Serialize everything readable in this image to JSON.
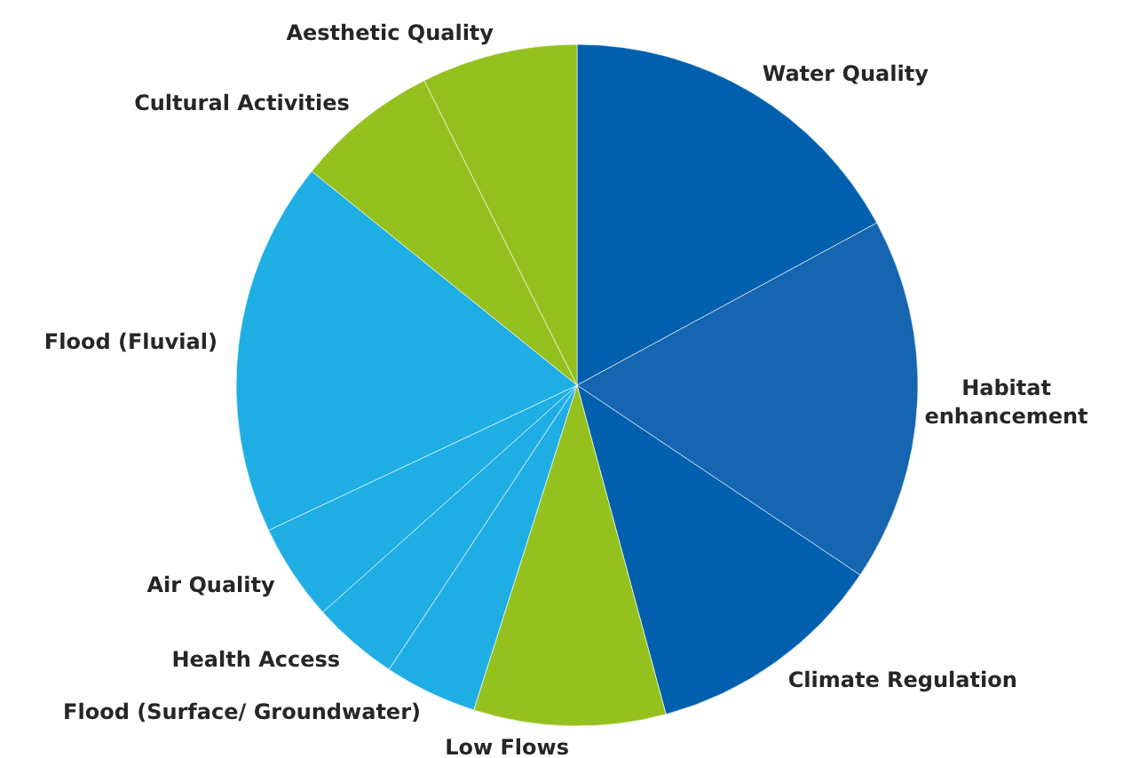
{
  "chart_data": {
    "type": "pie",
    "categories": [
      "Water Quality",
      "Habitat enhancement",
      "Climate Regulation",
      "Low Flows",
      "Flood (Surface/ Groundwater)",
      "Health Access",
      "Air Quality",
      "Flood (Fluvial)",
      "Cultural Activities",
      "Aesthetic Quality"
    ],
    "values": [
      17.1,
      17.3,
      11.4,
      9.1,
      4.4,
      4.1,
      4.6,
      17.8,
      6.8,
      7.4
    ],
    "colors": [
      "#0060ae",
      "#1565b0",
      "#0060ae",
      "#95c11f",
      "#1eaee4",
      "#1eaee4",
      "#1eaee4",
      "#1eaee4",
      "#95c11f",
      "#95c11f"
    ],
    "legend": false
  }
}
